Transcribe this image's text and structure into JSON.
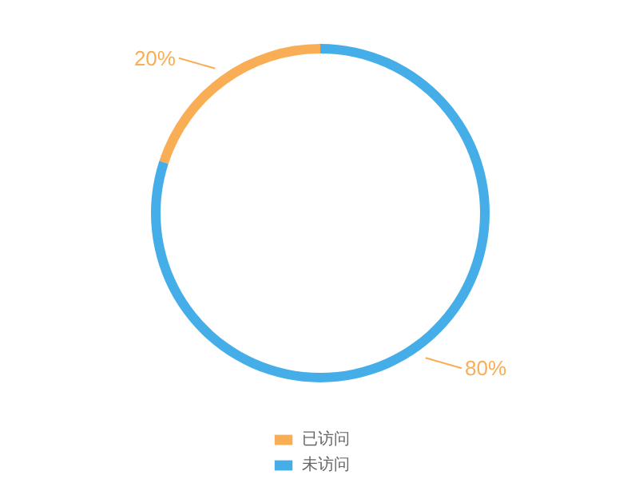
{
  "chart_data": {
    "type": "donut",
    "categories": [
      "已访问",
      "未访问"
    ],
    "values": [
      20,
      80
    ],
    "colors": [
      "#f9ae55",
      "#45aee8"
    ],
    "value_labels": [
      "20%",
      "80%"
    ],
    "legend": "bottom"
  }
}
